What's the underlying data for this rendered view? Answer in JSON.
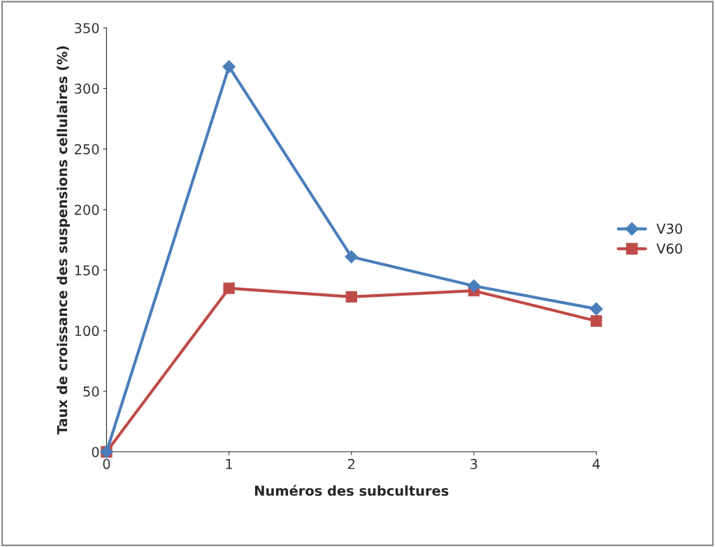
{
  "chart_data": {
    "type": "line",
    "xlabel": "Numéros des subcultures",
    "ylabel": "Taux de croissance des suspensions cellulaires (%)",
    "x": [
      0,
      1,
      2,
      3,
      4
    ],
    "series": [
      {
        "name": "V30",
        "color": "#4a7ebb",
        "marker": "diamond",
        "values": [
          0,
          318,
          161,
          137,
          118
        ]
      },
      {
        "name": "V60",
        "color": "#be4b48",
        "marker": "square",
        "values": [
          0,
          135,
          128,
          133,
          108
        ]
      }
    ],
    "xlim": [
      0,
      4
    ],
    "xticks": [
      0,
      1,
      2,
      3,
      4
    ],
    "ylim": [
      0,
      350
    ],
    "yticks": [
      0,
      50,
      100,
      150,
      200,
      250,
      300,
      350
    ],
    "grid": false,
    "legend": "right",
    "line_style": "solid"
  }
}
